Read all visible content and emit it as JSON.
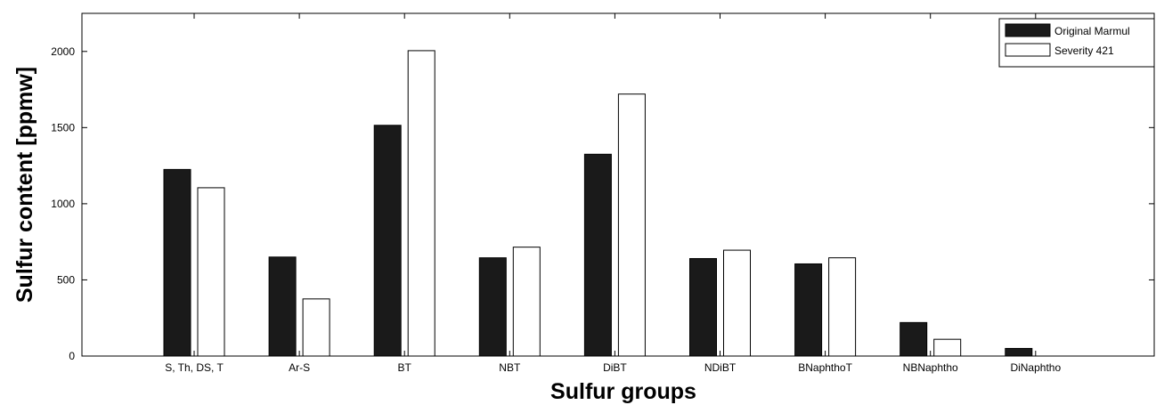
{
  "chart_data": {
    "type": "bar",
    "title": "",
    "xlabel": "Sulfur groups",
    "ylabel": "Sulfur content [ppmw]",
    "categories": [
      "S, Th, DS, T",
      "Ar-S",
      "BT",
      "NBT",
      "DiBT",
      "NDiBT",
      "BNaphthoT",
      "NBNaphtho",
      "DiNaphtho"
    ],
    "series": [
      {
        "name": "Original Marmul",
        "color": "#1a1a1a",
        "values": [
          1225,
          650,
          1515,
          645,
          1325,
          640,
          605,
          220,
          50
        ]
      },
      {
        "name": "Severity 421",
        "color": "#ffffff",
        "values": [
          1105,
          375,
          2005,
          715,
          1720,
          695,
          645,
          110,
          0
        ]
      }
    ],
    "ylim": [
      0,
      2250
    ],
    "yticks": [
      0,
      500,
      1000,
      1500,
      2000
    ],
    "grid": false,
    "legend_position": "top-right"
  }
}
